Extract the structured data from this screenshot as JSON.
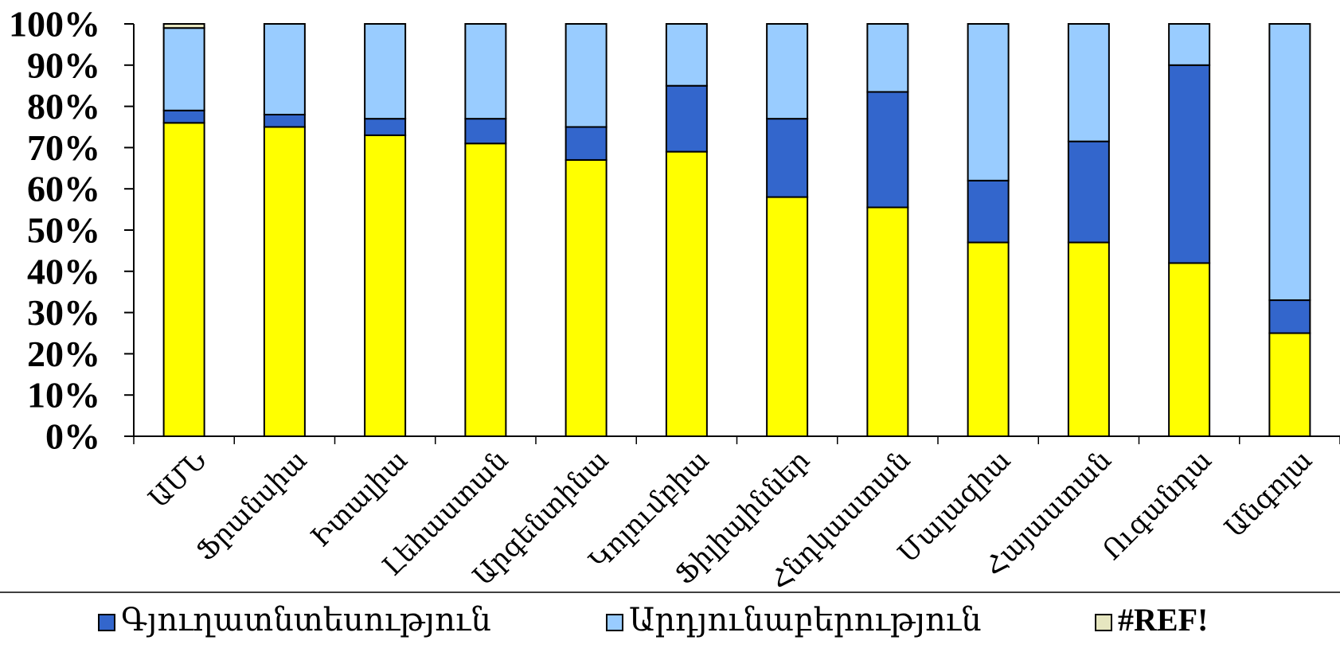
{
  "chart_data": {
    "type": "bar",
    "stacked": true,
    "percent_stacked": true,
    "categories": [
      "ԱՄՆ",
      "Ֆրանսիա",
      "Իտալիա",
      "Լեհաստան",
      "Արգենտինա",
      "Կոլումբիա",
      "Ֆիլիպիններ",
      "Հնդկաստան",
      "Մալազիա",
      "Հայաստան",
      "Ուգանդա",
      "Անգոլա"
    ],
    "series": [
      {
        "values": [
          76,
          75,
          73,
          71,
          67,
          69,
          58,
          55.5,
          47,
          47,
          42,
          25
        ],
        "color": "#FFFF00"
      },
      {
        "name": "Գյուղատնտեսություն",
        "values": [
          3,
          3,
          4,
          6,
          8,
          16,
          19,
          28,
          15,
          24.5,
          48,
          8
        ],
        "color": "#3366CC"
      },
      {
        "name": "Արդյունաբերություն",
        "values": [
          20,
          22,
          23,
          23,
          25,
          15,
          23,
          16.5,
          38,
          28.5,
          10,
          67
        ],
        "color": "#99CCFF"
      },
      {
        "name": "#REF!",
        "values": [
          1,
          0,
          0,
          0,
          0,
          0,
          0,
          0,
          0,
          0,
          0,
          0
        ],
        "color": "#E6E6C0"
      }
    ],
    "y_ticks": [
      "0%",
      "10%",
      "20%",
      "30%",
      "40%",
      "50%",
      "60%",
      "70%",
      "80%",
      "90%",
      "100%"
    ],
    "ylim": [
      0,
      100
    ],
    "xlabel": "",
    "ylabel": "",
    "title": "",
    "grid": false,
    "legend_position": "bottom"
  }
}
